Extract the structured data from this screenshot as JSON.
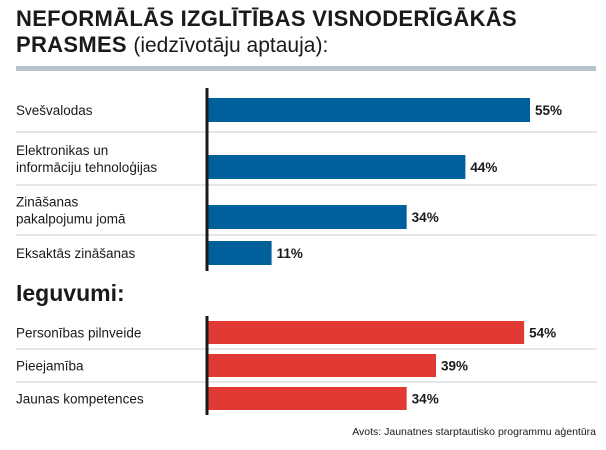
{
  "title": {
    "main_line1": "NEFORMĀLĀS IZGLĪTĪBAS VISNODERĪGĀKĀS",
    "main_line2": "PRASMES",
    "subtitle": "(iedzīvotāju aptauja):"
  },
  "source": "Avots: Jaunatnes starptautisko programmu aģentūra",
  "colors": {
    "series1": "#00609c",
    "series2": "#e13a34",
    "divider": "#c8ced4",
    "axis": "#1a1a1a"
  },
  "chart_data": [
    {
      "type": "bar",
      "orientation": "horizontal",
      "title": "Neformālās izglītības visnoderīgākās prasmes",
      "categories": [
        [
          "Svešvalodas"
        ],
        [
          "Elektronikas un",
          "informāciju tehnoloģijas"
        ],
        [
          "Zināšanas",
          "pakalpojumu jomā"
        ],
        [
          "Eksaktās zināšanas"
        ]
      ],
      "values": [
        55,
        44,
        34,
        11
      ],
      "value_labels": [
        "55%",
        "44%",
        "34%",
        "11%"
      ],
      "unit": "%",
      "xlim": [
        0,
        60
      ]
    },
    {
      "type": "bar",
      "orientation": "horizontal",
      "title": "Ieguvumi:",
      "categories": [
        [
          "Personības pilnveide"
        ],
        [
          "Pieejamība"
        ],
        [
          "Jaunas kompetences"
        ]
      ],
      "values": [
        54,
        39,
        34
      ],
      "value_labels": [
        "54%",
        "39%",
        "34%"
      ],
      "unit": "%",
      "xlim": [
        0,
        60
      ]
    }
  ]
}
